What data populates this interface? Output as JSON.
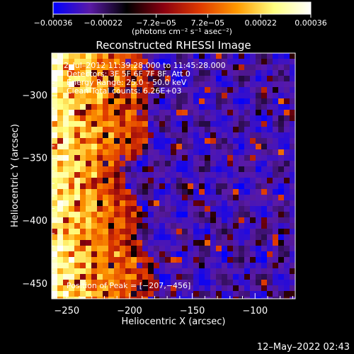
{
  "chart_data": {
    "type": "heatmap",
    "title": "Reconstructed RHESSI Image",
    "xlabel": "Heliocentric X (arcsec)",
    "ylabel": "Heliocentric Y (arcsec)",
    "xlim": [
      -262,
      -68
    ],
    "ylim": [
      -462,
      -266
    ],
    "xticks": [
      -250,
      -200,
      -150,
      -100
    ],
    "yticks": [
      -300,
      -350,
      -400,
      -450
    ],
    "xtick_labels": [
      "−250",
      "−200",
      "−150",
      "−100"
    ],
    "ytick_labels": [
      "−300",
      "−350",
      "−400",
      "−450"
    ],
    "colorbar": {
      "range": [
        -0.00036,
        0.00036
      ],
      "tick_labels": [
        "−0.00036",
        "−0.00022",
        "−7.2e−05",
        "7.2e−05",
        "0.00022",
        "0.00036"
      ],
      "unit_label": "(photons cm⁻² s⁻¹ asec⁻²)",
      "colors": [
        "#0000ff",
        "#5a1aa6",
        "#000000",
        "#8a0010",
        "#e03a00",
        "#ff9a00",
        "#ffff80",
        "#ffffff"
      ]
    },
    "annotations": {
      "time": "2–Jul–2012 11:39:28.000 to 11:45:28.000",
      "detectors": "Detectors: 3F 5F 6F 7F 8F, Att 0",
      "energy": "Energy Range: 25.0 – 50.0 keV",
      "clean": "Clean     Total counts: 6.26E+03",
      "peak": "Position of Peak = [−207,−456]"
    },
    "grid": false
  },
  "footer": {
    "date": "12–May–2022 02:43"
  }
}
